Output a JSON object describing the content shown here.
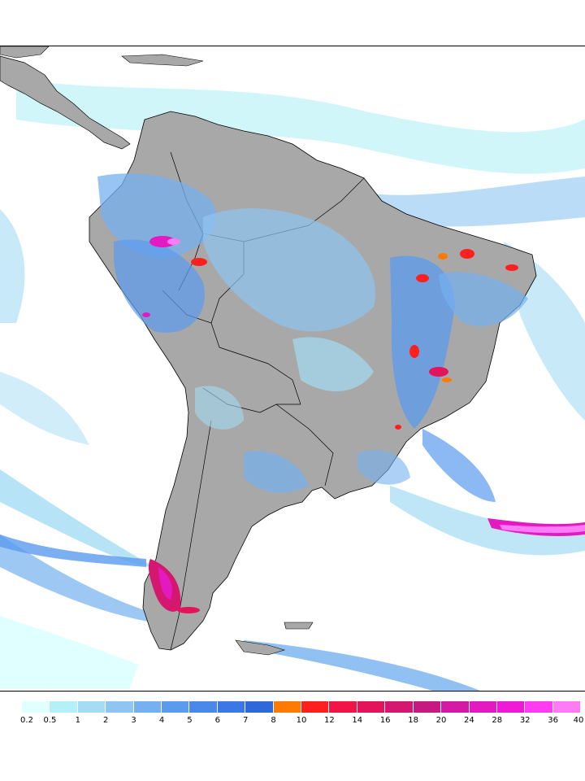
{
  "map": {
    "land_color": "#a8a8a8",
    "ocean_color": "#ffffff",
    "border_color": "#000000"
  },
  "legend": {
    "colors": [
      "#e0ffff",
      "#b3f0f7",
      "#a4dcf3",
      "#8ec5f2",
      "#75b0f0",
      "#5b9bee",
      "#4a89ea",
      "#3b78e6",
      "#2f68d8",
      "#ff7a00",
      "#ff1f1f",
      "#f21446",
      "#e4145b",
      "#d4186f",
      "#c61a82",
      "#d41aa4",
      "#e21abf",
      "#f01ad6",
      "#ff3cf0",
      "#ff7af5"
    ],
    "labels": [
      "0.2",
      "0.5",
      "1",
      "2",
      "3",
      "4",
      "5",
      "6",
      "7",
      "8",
      "10",
      "12",
      "14",
      "16",
      "18",
      "20",
      "24",
      "28",
      "32",
      "36",
      "40"
    ]
  }
}
